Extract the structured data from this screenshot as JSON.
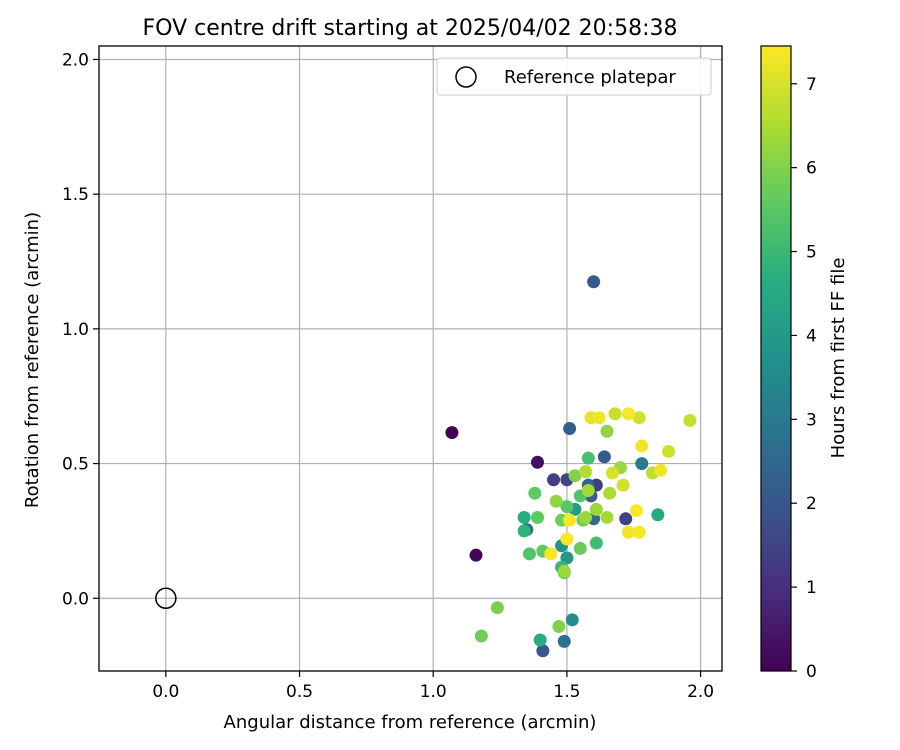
{
  "chart_data": {
    "type": "scatter",
    "title": "FOV centre drift starting at 2025/04/02 20:58:38",
    "xlabel": "Angular distance from reference (arcmin)",
    "ylabel": "Rotation from reference (arcmin)",
    "xlim": [
      -0.25,
      2.08
    ],
    "ylim": [
      -0.27,
      2.05
    ],
    "xticks": [
      0.0,
      0.5,
      1.0,
      1.5,
      2.0
    ],
    "xtick_labels": [
      "0.0",
      "0.5",
      "1.0",
      "1.5",
      "2.0"
    ],
    "yticks": [
      0.0,
      0.5,
      1.0,
      1.5,
      2.0
    ],
    "ytick_labels": [
      "0.0",
      "0.5",
      "1.0",
      "1.5",
      "2.0"
    ],
    "grid": true,
    "legend": {
      "location": "upper right",
      "entries": [
        {
          "label": "Reference platepar",
          "marker": "open-circle"
        }
      ]
    },
    "reference_point": {
      "x": 0.0,
      "y": 0.0
    },
    "colorbar": {
      "label": "Hours from first FF file",
      "colormap": "viridis",
      "range": [
        0,
        7.45
      ],
      "ticks": [
        0,
        1,
        2,
        3,
        4,
        5,
        6,
        7
      ],
      "tick_labels": [
        "0",
        "1",
        "2",
        "3",
        "4",
        "5",
        "6",
        "7"
      ]
    },
    "series": [
      {
        "points": [
          {
            "x": 1.07,
            "y": 0.615,
            "c": 0.05
          },
          {
            "x": 1.16,
            "y": 0.16,
            "c": 0.1
          },
          {
            "x": 1.39,
            "y": 0.505,
            "c": 0.3
          },
          {
            "x": 1.45,
            "y": 0.44,
            "c": 1.4
          },
          {
            "x": 1.5,
            "y": 0.44,
            "c": 1.5
          },
          {
            "x": 1.61,
            "y": 0.42,
            "c": 1.3
          },
          {
            "x": 1.72,
            "y": 0.295,
            "c": 1.5
          },
          {
            "x": 1.41,
            "y": -0.195,
            "c": 2.0
          },
          {
            "x": 1.6,
            "y": 1.175,
            "c": 2.1
          },
          {
            "x": 1.51,
            "y": 0.63,
            "c": 2.2
          },
          {
            "x": 1.64,
            "y": 0.525,
            "c": 2.1
          },
          {
            "x": 1.59,
            "y": 0.38,
            "c": 2.2
          },
          {
            "x": 1.58,
            "y": 0.42,
            "c": 2.4
          },
          {
            "x": 1.6,
            "y": 0.295,
            "c": 2.6
          },
          {
            "x": 1.49,
            "y": -0.16,
            "c": 2.8
          },
          {
            "x": 1.35,
            "y": 0.255,
            "c": 2.6
          },
          {
            "x": 1.78,
            "y": 0.5,
            "c": 3.0
          },
          {
            "x": 1.52,
            "y": -0.08,
            "c": 3.6
          },
          {
            "x": 1.48,
            "y": 0.195,
            "c": 3.8
          },
          {
            "x": 1.5,
            "y": 0.15,
            "c": 4.0
          },
          {
            "x": 1.53,
            "y": 0.33,
            "c": 4.1
          },
          {
            "x": 1.34,
            "y": 0.3,
            "c": 4.6
          },
          {
            "x": 1.84,
            "y": 0.31,
            "c": 4.5
          },
          {
            "x": 1.4,
            "y": -0.155,
            "c": 4.6
          },
          {
            "x": 1.34,
            "y": 0.25,
            "c": 4.8
          },
          {
            "x": 1.48,
            "y": 0.115,
            "c": 4.9
          },
          {
            "x": 1.61,
            "y": 0.205,
            "c": 5.1
          },
          {
            "x": 1.58,
            "y": 0.52,
            "c": 5.2
          },
          {
            "x": 1.55,
            "y": 0.38,
            "c": 5.4
          },
          {
            "x": 1.5,
            "y": 0.34,
            "c": 5.5
          },
          {
            "x": 1.36,
            "y": 0.165,
            "c": 5.4
          },
          {
            "x": 1.41,
            "y": 0.175,
            "c": 5.6
          },
          {
            "x": 1.38,
            "y": 0.39,
            "c": 5.6
          },
          {
            "x": 1.39,
            "y": 0.3,
            "c": 5.6
          },
          {
            "x": 1.49,
            "y": 0.095,
            "c": 5.6
          },
          {
            "x": 1.55,
            "y": 0.185,
            "c": 5.7
          },
          {
            "x": 1.56,
            "y": 0.29,
            "c": 5.8
          },
          {
            "x": 1.48,
            "y": 0.29,
            "c": 5.8
          },
          {
            "x": 1.18,
            "y": -0.14,
            "c": 5.8
          },
          {
            "x": 1.24,
            "y": -0.035,
            "c": 5.9
          },
          {
            "x": 1.47,
            "y": -0.105,
            "c": 6.0
          },
          {
            "x": 1.49,
            "y": 0.1,
            "c": 6.3
          },
          {
            "x": 1.53,
            "y": 0.455,
            "c": 6.0
          },
          {
            "x": 1.46,
            "y": 0.36,
            "c": 6.2
          },
          {
            "x": 1.57,
            "y": 0.3,
            "c": 6.3
          },
          {
            "x": 1.61,
            "y": 0.33,
            "c": 6.3
          },
          {
            "x": 1.65,
            "y": 0.3,
            "c": 6.4
          },
          {
            "x": 1.65,
            "y": 0.62,
            "c": 6.2
          },
          {
            "x": 1.7,
            "y": 0.485,
            "c": 6.3
          },
          {
            "x": 1.58,
            "y": 0.4,
            "c": 6.4
          },
          {
            "x": 1.66,
            "y": 0.39,
            "c": 6.5
          },
          {
            "x": 1.57,
            "y": 0.47,
            "c": 6.6
          },
          {
            "x": 1.82,
            "y": 0.465,
            "c": 6.7
          },
          {
            "x": 1.68,
            "y": 0.685,
            "c": 6.8
          },
          {
            "x": 1.77,
            "y": 0.67,
            "c": 6.9
          },
          {
            "x": 1.71,
            "y": 0.42,
            "c": 6.9
          },
          {
            "x": 1.88,
            "y": 0.545,
            "c": 6.9
          },
          {
            "x": 1.96,
            "y": 0.66,
            "c": 6.8
          },
          {
            "x": 1.67,
            "y": 0.465,
            "c": 7.0
          },
          {
            "x": 1.59,
            "y": 0.67,
            "c": 7.2
          },
          {
            "x": 1.62,
            "y": 0.67,
            "c": 7.3
          },
          {
            "x": 1.73,
            "y": 0.685,
            "c": 7.4
          },
          {
            "x": 1.78,
            "y": 0.565,
            "c": 7.3
          },
          {
            "x": 1.85,
            "y": 0.475,
            "c": 7.3
          },
          {
            "x": 1.73,
            "y": 0.245,
            "c": 7.3
          },
          {
            "x": 1.77,
            "y": 0.245,
            "c": 7.4
          },
          {
            "x": 1.76,
            "y": 0.325,
            "c": 7.4
          },
          {
            "x": 1.5,
            "y": 0.22,
            "c": 7.4
          },
          {
            "x": 1.51,
            "y": 0.29,
            "c": 7.4
          },
          {
            "x": 1.44,
            "y": 0.165,
            "c": 7.4
          }
        ]
      }
    ]
  }
}
